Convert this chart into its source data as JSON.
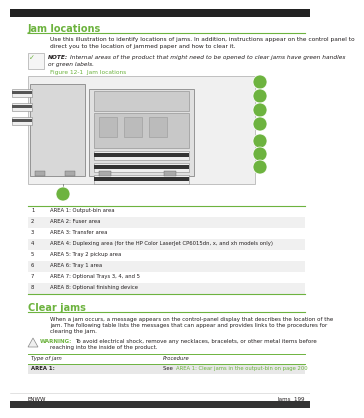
{
  "bg_color": "#ffffff",
  "green": "#6db33f",
  "text_color": "#231f20",
  "gray_light": "#f0f0f0",
  "gray_med": "#cccccc",
  "title1": "Jam locations",
  "body1_line1": "Use this illustration to identify locations of jams. In addition, instructions appear on the control panel to",
  "body1_line2": "direct you to the location of jammed paper and how to clear it.",
  "note_label": "NOTE:",
  "note_line1": "Internal areas of the product that might need to be opened to clear jams have green handles",
  "note_line2": "or green labels.",
  "fig_caption": "Figure 12-1  Jam locations",
  "table_rows": [
    [
      "1",
      "AREA 1: Output-bin area"
    ],
    [
      "2",
      "AREA 2: Fuser area"
    ],
    [
      "3",
      "AREA 3: Transfer area"
    ],
    [
      "4",
      "AREA 4: Duplexing area (for the HP Color LaserJet CP6015dn, x, and xh models only)"
    ],
    [
      "5",
      "AREA 5: Tray 2 pickup area"
    ],
    [
      "6",
      "AREA 6: Tray 1 area"
    ],
    [
      "7",
      "AREA 7: Optional Trays 3, 4, and 5"
    ],
    [
      "8",
      "AREA 8: Optional finishing device"
    ]
  ],
  "title2": "Clear jams",
  "body2_line1": "When a jam occurs, a message appears on the control-panel display that describes the location of the",
  "body2_line2": "jam. The following table lists the messages that can appear and provides links to the procedures for",
  "body2_line3": "clearing the jam.",
  "warn_label": "WARNING:",
  "warn_line1": "To avoid electrical shock, remove any necklaces, bracelets, or other metal items before",
  "warn_line2": "reaching into the inside of the product.",
  "t2h1": "Type of jam",
  "t2h2": "Procedure",
  "t2r1c1": "AREA 1:",
  "t2r1c2": "See AREA 1: Clear jams in the output-bin on page 200",
  "footer_left": "ENWW",
  "footer_right": "Jams  199",
  "link_color": "#6db33f",
  "dark_strip": "#555555"
}
